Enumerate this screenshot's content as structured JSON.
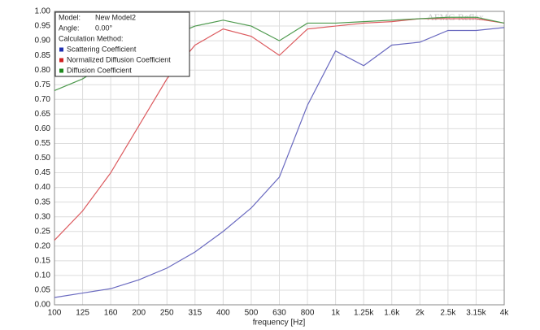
{
  "chart_data": {
    "type": "line",
    "x_label": "frequency [Hz]",
    "watermark": "AFMG Reflex",
    "legend_info": {
      "model_label": "Model:",
      "model": "New Model2",
      "angle_label": "Angle:",
      "angle": "0.00°",
      "method_label": "Calculation Method:"
    },
    "categories": [
      "100",
      "125",
      "160",
      "200",
      "250",
      "315",
      "400",
      "500",
      "630",
      "800",
      "1k",
      "1.25k",
      "1.6k",
      "2k",
      "2.5k",
      "3.15k",
      "4k"
    ],
    "series": [
      {
        "name": "Scattering Coefficient",
        "color": "#6a6ac0",
        "legend_color": "#1f2fb0",
        "values": [
          0.025,
          0.04,
          0.055,
          0.085,
          0.125,
          0.18,
          0.25,
          0.33,
          0.435,
          0.68,
          0.865,
          0.815,
          0.885,
          0.895,
          0.935,
          0.935,
          0.945
        ]
      },
      {
        "name": "Normalized Diffusion Coefficient",
        "color": "#dc5a5e",
        "legend_color": "#d02020",
        "values": [
          0.22,
          0.32,
          0.45,
          0.61,
          0.77,
          0.885,
          0.94,
          0.915,
          0.85,
          0.94,
          0.95,
          0.96,
          0.965,
          0.975,
          0.975,
          0.975,
          0.96
        ]
      },
      {
        "name": "Diffusion Coefficient",
        "color": "#4e9a4e",
        "legend_color": "#1e8a1e",
        "values": [
          0.73,
          0.77,
          0.83,
          0.88,
          0.91,
          0.95,
          0.97,
          0.95,
          0.9,
          0.96,
          0.96,
          0.965,
          0.97,
          0.975,
          0.98,
          0.98,
          0.96
        ]
      }
    ],
    "ylim": [
      0,
      1
    ],
    "yticks": [
      {
        "value": 0,
        "label": "0.00"
      },
      {
        "value": 0.05,
        "label": "0.05"
      },
      {
        "value": 0.1,
        "label": "0.10"
      },
      {
        "value": 0.15,
        "label": "0.15"
      },
      {
        "value": 0.2,
        "label": "0.20"
      },
      {
        "value": 0.25,
        "label": "0.25"
      },
      {
        "value": 0.3,
        "label": "0.30"
      },
      {
        "value": 0.35,
        "label": "0.35"
      },
      {
        "value": 0.4,
        "label": "0.40"
      },
      {
        "value": 0.45,
        "label": "0.45"
      },
      {
        "value": 0.5,
        "label": "0.50"
      },
      {
        "value": 0.55,
        "label": "0.55"
      },
      {
        "value": 0.6,
        "label": "0.60"
      },
      {
        "value": 0.65,
        "label": "0.65"
      },
      {
        "value": 0.7,
        "label": "0.70"
      },
      {
        "value": 0.75,
        "label": "0.75"
      },
      {
        "value": 0.8,
        "label": "0.80"
      },
      {
        "value": 0.85,
        "label": "0.85"
      },
      {
        "value": 0.9,
        "label": "0.90"
      },
      {
        "value": 0.95,
        "label": "0.95"
      },
      {
        "value": 1,
        "label": "1.00"
      }
    ],
    "grid": true
  }
}
